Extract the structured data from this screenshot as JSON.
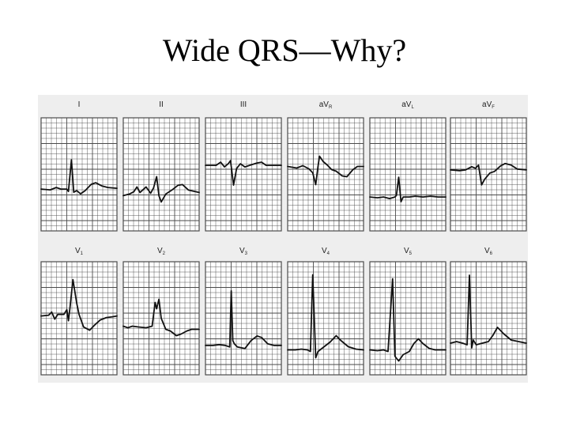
{
  "slide": {
    "title": "Wide QRS—Why?"
  },
  "figure": {
    "rows": [
      {
        "leads": [
          {
            "id": "I",
            "label": "I",
            "sub": ""
          },
          {
            "id": "II",
            "label": "II",
            "sub": ""
          },
          {
            "id": "III",
            "label": "III",
            "sub": ""
          },
          {
            "id": "aVR",
            "label": "aV",
            "sub": "R"
          },
          {
            "id": "aVL",
            "label": "aV",
            "sub": "L"
          },
          {
            "id": "aVF",
            "label": "aV",
            "sub": "F"
          }
        ]
      },
      {
        "leads": [
          {
            "id": "V1",
            "label": "V",
            "sub": "1"
          },
          {
            "id": "V2",
            "label": "V",
            "sub": "2"
          },
          {
            "id": "V3",
            "label": "V",
            "sub": "3"
          },
          {
            "id": "V4",
            "label": "V",
            "sub": "4"
          },
          {
            "id": "V5",
            "label": "V",
            "sub": "5"
          },
          {
            "id": "V6",
            "label": "V",
            "sub": "6"
          }
        ]
      }
    ],
    "colors": {
      "grid": "#4a4a4a",
      "trace": "#111111",
      "paper": "#ffffff"
    }
  }
}
